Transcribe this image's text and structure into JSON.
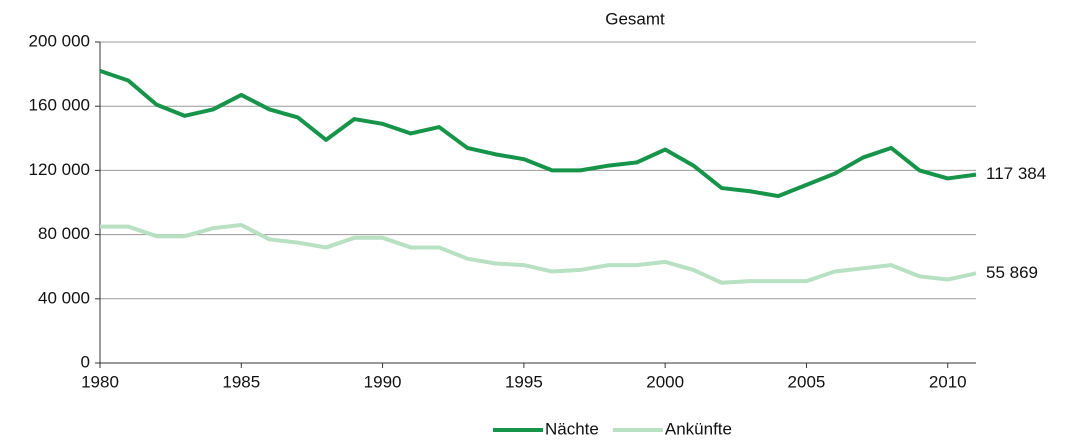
{
  "chart_data": {
    "type": "line",
    "title": "Gesamt",
    "x": [
      1980,
      1981,
      1982,
      1983,
      1984,
      1985,
      1986,
      1987,
      1988,
      1989,
      1990,
      1991,
      1992,
      1993,
      1994,
      1995,
      1996,
      1997,
      1998,
      1999,
      2000,
      2001,
      2002,
      2003,
      2004,
      2005,
      2006,
      2007,
      2008,
      2009,
      2010,
      2011
    ],
    "series": [
      {
        "name": "Nächte",
        "color": "#16944a",
        "values": [
          182000,
          176000,
          161000,
          154000,
          158000,
          167000,
          158000,
          153000,
          139000,
          152000,
          149000,
          143000,
          147000,
          134000,
          130000,
          127000,
          120000,
          120000,
          123000,
          125000,
          133000,
          123000,
          109000,
          107000,
          104000,
          111000,
          118000,
          128000,
          134000,
          120000,
          115000,
          117384
        ],
        "value_labels": [
          null,
          null,
          null,
          null,
          null,
          null,
          null,
          null,
          null,
          null,
          null,
          null,
          null,
          null,
          null,
          null,
          null,
          null,
          null,
          null,
          null,
          null,
          null,
          null,
          null,
          null,
          null,
          null,
          null,
          null,
          null,
          "117 384"
        ]
      },
      {
        "name": "Ankünfte",
        "color": "#b8e0c2",
        "values": [
          85000,
          85000,
          79000,
          79000,
          84000,
          86000,
          77000,
          75000,
          72000,
          78000,
          78000,
          72000,
          72000,
          65000,
          62000,
          61000,
          57000,
          58000,
          61000,
          61000,
          63000,
          58000,
          50000,
          51000,
          51000,
          51000,
          57000,
          59000,
          61000,
          54000,
          52000,
          55869
        ],
        "value_labels": [
          null,
          null,
          null,
          null,
          null,
          null,
          null,
          null,
          null,
          null,
          null,
          null,
          null,
          null,
          null,
          null,
          null,
          null,
          null,
          null,
          null,
          null,
          null,
          null,
          null,
          null,
          null,
          null,
          null,
          null,
          null,
          "55 869"
        ]
      }
    ],
    "xlim": [
      1980,
      2011
    ],
    "xticks": [
      1980,
      1985,
      1990,
      1995,
      2000,
      2005,
      2010
    ],
    "ylim": [
      0,
      200000
    ],
    "yticks": [
      0,
      {
        "value": 40000,
        "label": "40 000"
      },
      {
        "value": 80000,
        "label": "80 000"
      },
      {
        "value": 120000,
        "label": "120 000"
      },
      {
        "value": 160000,
        "label": "160 000"
      },
      {
        "value": 200000,
        "label": "200 000"
      }
    ],
    "grid": true,
    "legend": "bottom"
  }
}
